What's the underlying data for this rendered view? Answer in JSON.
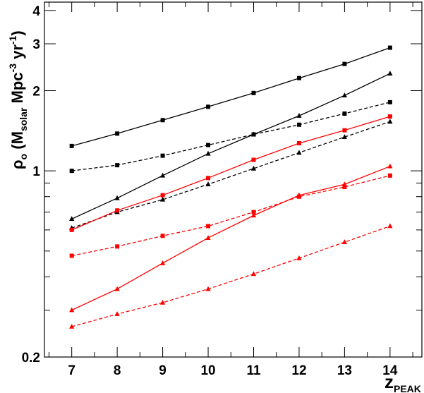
{
  "chart_data": {
    "type": "line",
    "title": "",
    "xlabel": {
      "main": "z",
      "sub": "PEAK"
    },
    "ylabel": {
      "rho": "ρ",
      "rho_sub": "o",
      "open": " (M",
      "msub": "solar",
      "mpc": " Mpc",
      "mpc_sup": "-3",
      "yr": " yr",
      "yr_sup": "-1",
      "close": ")"
    },
    "x_ticks": [
      "7",
      "8",
      "9",
      "10",
      "11",
      "12",
      "13",
      "14"
    ],
    "y_ticks": [
      {
        "value": 0.2,
        "label": "0.2"
      },
      {
        "value": 1,
        "label": "1"
      },
      {
        "value": 2,
        "label": "2"
      },
      {
        "value": 3,
        "label": "3"
      },
      {
        "value": 4,
        "label": "4"
      }
    ],
    "xlim": [
      6.4,
      14.7
    ],
    "ylim": [
      0.2,
      4.3
    ],
    "y_scale": "log",
    "grid": false,
    "legend": "none",
    "x": [
      7,
      8,
      9,
      10,
      11,
      12,
      13,
      14
    ],
    "series": [
      {
        "color": "#000000",
        "dash": "solid",
        "marker": "square",
        "values": [
          1.24,
          1.38,
          1.55,
          1.74,
          1.96,
          2.23,
          2.52,
          2.9
        ]
      },
      {
        "color": "#000000",
        "dash": "solid",
        "marker": "triangle",
        "values": [
          0.66,
          0.79,
          0.96,
          1.16,
          1.37,
          1.61,
          1.92,
          2.32
        ]
      },
      {
        "color": "#000000",
        "dash": "dashed",
        "marker": "square",
        "values": [
          1.0,
          1.05,
          1.14,
          1.25,
          1.37,
          1.49,
          1.64,
          1.81
        ]
      },
      {
        "color": "#000000",
        "dash": "dashed",
        "marker": "triangle",
        "values": [
          0.61,
          0.7,
          0.78,
          0.89,
          1.02,
          1.17,
          1.34,
          1.53
        ]
      },
      {
        "color": "#ff0000",
        "dash": "solid",
        "marker": "square",
        "values": [
          0.6,
          0.71,
          0.81,
          0.94,
          1.1,
          1.27,
          1.42,
          1.6
        ]
      },
      {
        "color": "#ff0000",
        "dash": "solid",
        "marker": "triangle",
        "values": [
          0.3,
          0.36,
          0.45,
          0.56,
          0.68,
          0.81,
          0.89,
          1.04
        ]
      },
      {
        "color": "#ff0000",
        "dash": "dashed",
        "marker": "square",
        "values": [
          0.48,
          0.52,
          0.57,
          0.62,
          0.7,
          0.8,
          0.87,
          0.96
        ]
      },
      {
        "color": "#ff0000",
        "dash": "dashed",
        "marker": "triangle",
        "values": [
          0.26,
          0.29,
          0.32,
          0.36,
          0.41,
          0.47,
          0.54,
          0.62
        ]
      }
    ]
  }
}
